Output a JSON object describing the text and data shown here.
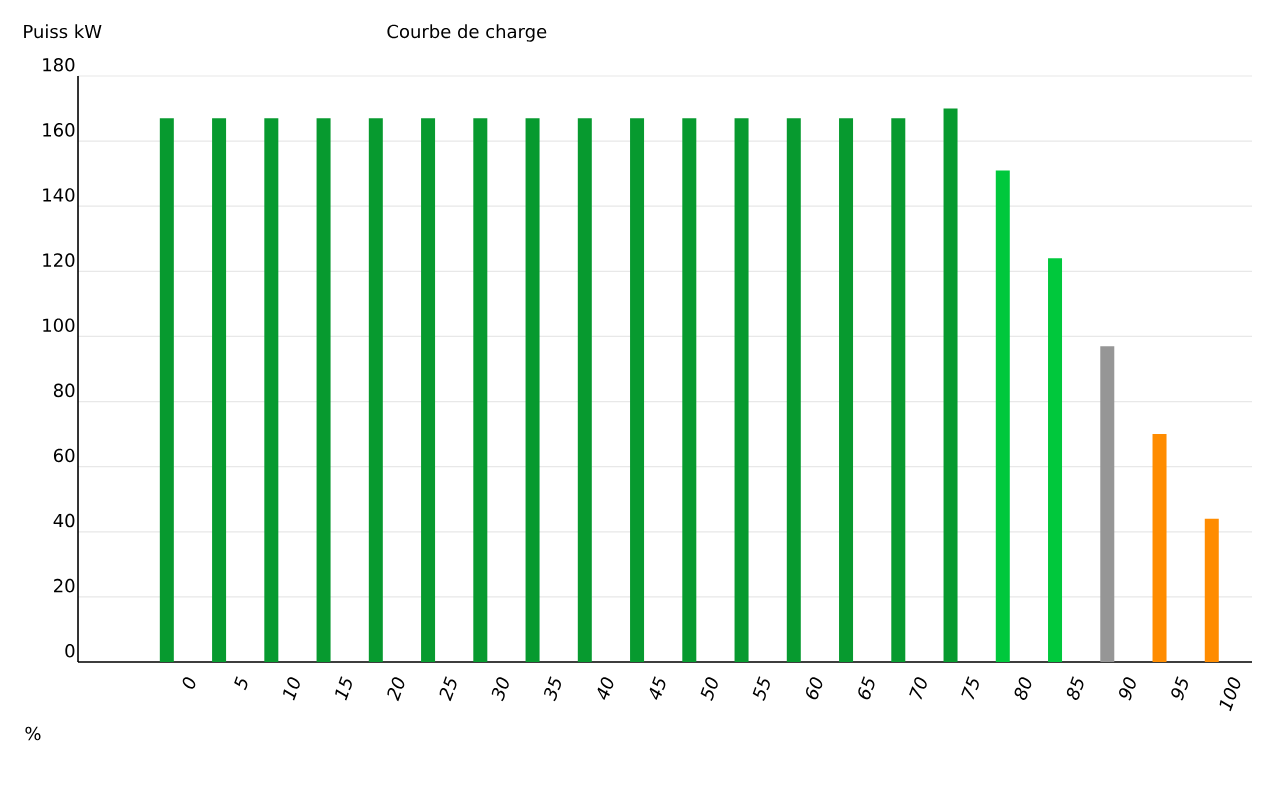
{
  "chart_data": {
    "type": "bar",
    "title": "Courbe de charge",
    "ylabel": "Puiss kW",
    "annotations": [
      "%"
    ],
    "categories": [
      "0",
      "5",
      "10",
      "15",
      "20",
      "25",
      "30",
      "35",
      "40",
      "45",
      "50",
      "55",
      "60",
      "65",
      "70",
      "75",
      "80",
      "85",
      "90",
      "95",
      "100"
    ],
    "values": [
      167,
      167,
      167,
      167,
      167,
      167,
      167,
      167,
      167,
      167,
      167,
      167,
      167,
      167,
      167,
      170,
      151,
      124,
      97,
      70,
      44
    ],
    "colors": [
      "#079a2f",
      "#079a2f",
      "#079a2f",
      "#079a2f",
      "#079a2f",
      "#079a2f",
      "#079a2f",
      "#079a2f",
      "#079a2f",
      "#079a2f",
      "#079a2f",
      "#079a2f",
      "#079a2f",
      "#079a2f",
      "#079a2f",
      "#079a2f",
      "#00c83c",
      "#00c83c",
      "#969696",
      "#ff8c00",
      "#ff8c00"
    ],
    "ylim": [
      0,
      180
    ],
    "yticks": [
      0,
      20,
      40,
      60,
      80,
      100,
      120,
      140,
      160,
      180
    ],
    "grid": "y"
  }
}
